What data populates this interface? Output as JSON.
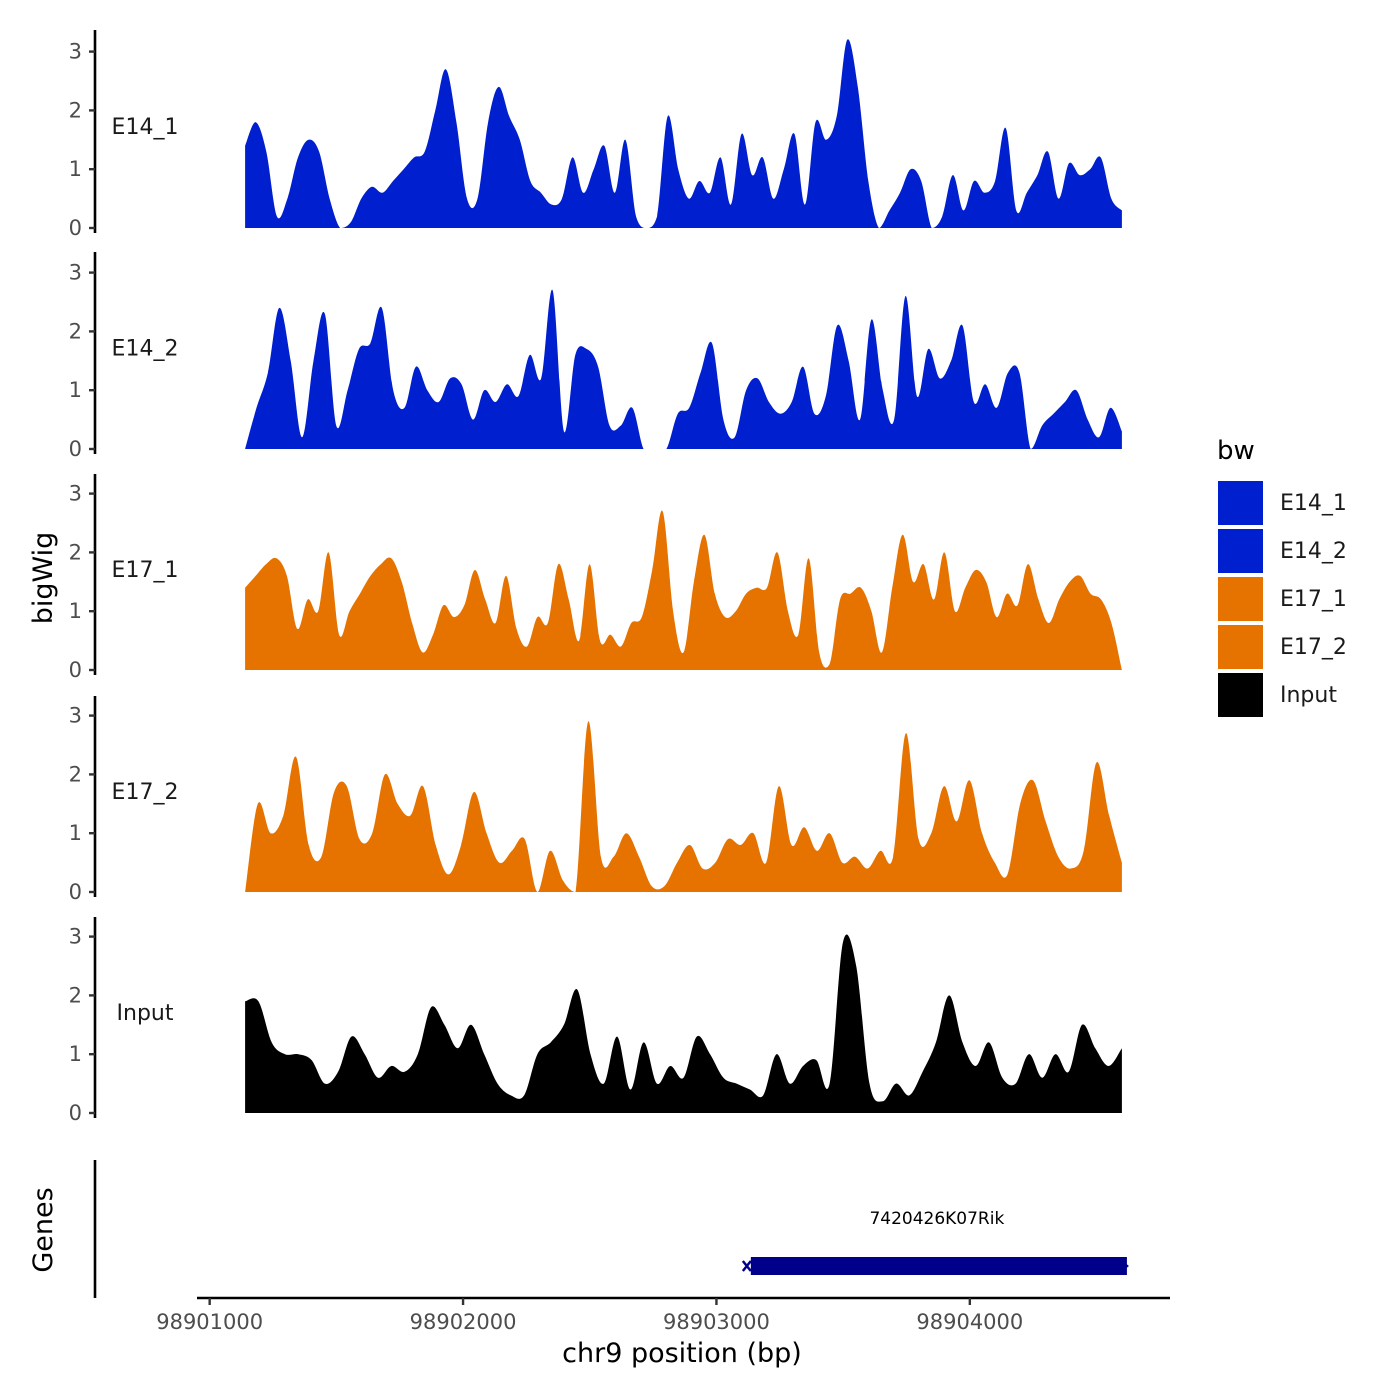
{
  "chart_data": {
    "type": "area",
    "ylabel": "bigWig",
    "xlabel": "chr9 position (bp)",
    "xlim": [
      98900950,
      98904790
    ],
    "x_ticks": [
      98901000,
      98902000,
      98903000,
      98904000
    ],
    "x_tick_labels": [
      "98901000",
      "98902000",
      "98903000",
      "98904000"
    ],
    "ylim": [
      0,
      3.3
    ],
    "y_ticks": [
      0,
      1,
      2,
      3
    ],
    "y_tick_labels": [
      "0",
      "1",
      "2",
      "3"
    ],
    "data_x_range": [
      98901140,
      98904600
    ],
    "genes_label": "Genes",
    "legend": {
      "title": "bw",
      "entries": [
        {
          "label": "E14_1",
          "color": "#0020D0"
        },
        {
          "label": "E14_2",
          "color": "#0020D0"
        },
        {
          "label": "E17_1",
          "color": "#E67300"
        },
        {
          "label": "E17_2",
          "color": "#E67300"
        },
        {
          "label": "Input",
          "color": "#000000"
        }
      ]
    },
    "tracks": [
      {
        "name": "E14_1",
        "color": "#0020D0",
        "values": [
          1.4,
          1.8,
          1.3,
          0.2,
          0.5,
          1.2,
          1.5,
          1.3,
          0.5,
          0.0,
          0.1,
          0.5,
          0.7,
          0.6,
          0.8,
          1.0,
          1.2,
          1.3,
          2.0,
          2.7,
          1.8,
          0.5,
          0.5,
          1.8,
          2.4,
          1.9,
          1.5,
          0.8,
          0.6,
          0.4,
          0.5,
          1.2,
          0.6,
          1.0,
          1.4,
          0.6,
          1.5,
          0.2,
          0.0,
          0.2,
          1.9,
          1.0,
          0.5,
          0.8,
          0.6,
          1.2,
          0.4,
          1.6,
          0.9,
          1.2,
          0.5,
          1.0,
          1.6,
          0.4,
          1.8,
          1.5,
          1.9,
          3.2,
          2.4,
          0.8,
          0.0,
          0.3,
          0.6,
          1.0,
          0.8,
          0.0,
          0.2,
          0.9,
          0.3,
          0.8,
          0.6,
          0.8,
          1.7,
          0.3,
          0.6,
          0.9,
          1.3,
          0.5,
          1.1,
          0.9,
          1.0,
          1.2,
          0.5,
          0.3
        ]
      },
      {
        "name": "E14_2",
        "color": "#0020D0",
        "values": [
          0.0,
          0.7,
          1.3,
          2.4,
          1.5,
          0.2,
          1.5,
          2.3,
          0.4,
          1.0,
          1.7,
          1.8,
          2.4,
          1.0,
          0.7,
          1.4,
          1.0,
          0.8,
          1.2,
          1.1,
          0.5,
          1.0,
          0.8,
          1.1,
          0.9,
          1.6,
          1.2,
          2.7,
          0.3,
          1.6,
          1.7,
          1.4,
          0.4,
          0.4,
          0.7,
          0.0,
          0.0,
          0.0,
          0.6,
          0.7,
          1.3,
          1.8,
          0.5,
          0.2,
          1.0,
          1.2,
          0.8,
          0.6,
          0.8,
          1.4,
          0.6,
          0.9,
          2.1,
          1.5,
          0.5,
          2.2,
          1.0,
          0.5,
          2.6,
          0.9,
          1.7,
          1.2,
          1.5,
          2.1,
          0.8,
          1.1,
          0.7,
          1.3,
          1.3,
          0.0,
          0.4,
          0.6,
          0.8,
          1.0,
          0.5,
          0.2,
          0.7,
          0.3
        ]
      },
      {
        "name": "E17_1",
        "color": "#E67300",
        "values": [
          1.4,
          1.6,
          1.8,
          1.9,
          1.6,
          0.7,
          1.2,
          1.0,
          2.0,
          0.6,
          1.0,
          1.3,
          1.6,
          1.8,
          1.9,
          1.5,
          0.8,
          0.3,
          0.6,
          1.1,
          0.9,
          1.1,
          1.7,
          1.2,
          0.8,
          1.6,
          0.7,
          0.4,
          0.9,
          0.8,
          1.8,
          1.2,
          0.5,
          1.8,
          0.5,
          0.6,
          0.4,
          0.8,
          0.9,
          1.7,
          2.7,
          1.0,
          0.3,
          1.5,
          2.3,
          1.3,
          0.9,
          1.0,
          1.3,
          1.4,
          1.4,
          2.0,
          1.0,
          0.6,
          1.9,
          0.3,
          0.1,
          1.2,
          1.3,
          1.4,
          1.0,
          0.3,
          1.4,
          2.3,
          1.5,
          1.8,
          1.2,
          2.0,
          1.0,
          1.4,
          1.7,
          1.5,
          0.9,
          1.3,
          1.1,
          1.8,
          1.2,
          0.8,
          1.2,
          1.5,
          1.6,
          1.3,
          1.2,
          0.8,
          0.0
        ]
      },
      {
        "name": "E17_2",
        "color": "#E67300",
        "values": [
          0.0,
          1.5,
          1.0,
          1.3,
          2.3,
          0.8,
          0.6,
          1.7,
          1.8,
          0.9,
          1.0,
          2.0,
          1.5,
          1.3,
          1.8,
          0.8,
          0.3,
          0.8,
          1.7,
          1.0,
          0.5,
          0.7,
          0.9,
          0.0,
          0.7,
          0.2,
          0.0,
          2.9,
          0.6,
          0.6,
          1.0,
          0.6,
          0.1,
          0.1,
          0.5,
          0.8,
          0.4,
          0.5,
          0.9,
          0.8,
          1.0,
          0.5,
          1.8,
          0.8,
          1.1,
          0.7,
          1.0,
          0.5,
          0.6,
          0.4,
          0.7,
          0.6,
          2.7,
          0.9,
          1.0,
          1.8,
          1.2,
          1.9,
          1.0,
          0.5,
          0.3,
          1.5,
          1.9,
          1.2,
          0.6,
          0.4,
          0.7,
          2.2,
          1.3,
          0.5
        ]
      },
      {
        "name": "Input",
        "color": "#000000",
        "values": [
          1.9,
          1.9,
          1.2,
          1.0,
          1.0,
          0.9,
          0.5,
          0.7,
          1.3,
          1.0,
          0.6,
          0.8,
          0.7,
          1.0,
          1.8,
          1.5,
          1.1,
          1.5,
          1.0,
          0.5,
          0.3,
          0.3,
          1.0,
          1.2,
          1.5,
          2.1,
          1.0,
          0.5,
          1.3,
          0.4,
          1.2,
          0.5,
          0.8,
          0.6,
          1.3,
          1.0,
          0.6,
          0.5,
          0.4,
          0.3,
          1.0,
          0.5,
          0.8,
          0.9,
          0.5,
          2.9,
          2.5,
          0.5,
          0.2,
          0.5,
          0.3,
          0.7,
          1.2,
          2.0,
          1.2,
          0.8,
          1.2,
          0.6,
          0.5,
          1.0,
          0.6,
          1.0,
          0.7,
          1.5,
          1.1,
          0.8,
          1.1
        ]
      }
    ],
    "genes": [
      {
        "name": "7420426K07Rik",
        "start": 98903120,
        "end": 98904620,
        "color": "#00008B"
      }
    ]
  }
}
